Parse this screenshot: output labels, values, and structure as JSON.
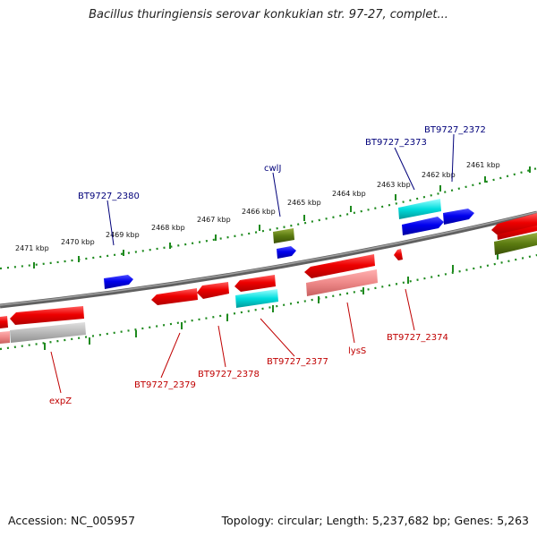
{
  "title": "Bacillus thuringiensis serovar konkukian str. 97-27, complet...",
  "accession": "Accession: NC_005957",
  "summary": "Topology: circular; Length: 5,237,682 bp; Genes: 5,263",
  "colors": {
    "backbone": "#7a7a7a",
    "tick": "#1e8a1e",
    "feature_red": "#e60000",
    "feature_blue": "#0000e6",
    "feature_cyan": "#00cccc",
    "feature_olive": "#5a7a10",
    "feature_pink": "#e88080",
    "feature_gray": "#b0b0b0",
    "label_blue": "#00007a",
    "label_red": "#c00000"
  },
  "ticks": [
    "2471 kbp",
    "2470 kbp",
    "2469 kbp",
    "2468 kbp",
    "2467 kbp",
    "2466 kbp",
    "2465 kbp",
    "2464 kbp",
    "2463 kbp",
    "2462 kbp",
    "2461 kbp"
  ],
  "gene_labels": {
    "top": [
      "BT9727_2380",
      "cwlJ",
      "BT9727_2373",
      "BT9727_2372"
    ],
    "bottom": [
      "expZ",
      "BT9727_2379",
      "BT9727_2378",
      "BT9727_2377",
      "lysS",
      "BT9727_2374"
    ]
  }
}
